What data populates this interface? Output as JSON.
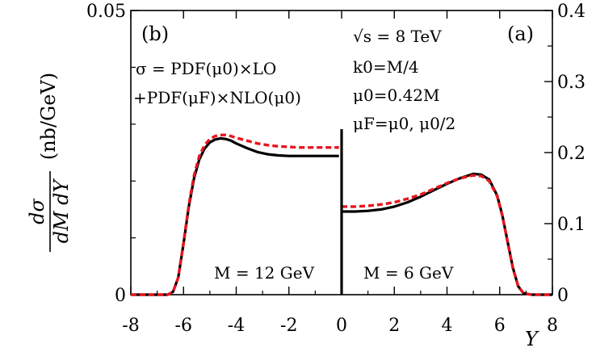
{
  "chart_data": {
    "type": "line",
    "panels": [
      {
        "panel_label": "(b)",
        "M_label": "M = 12 GeV",
        "formula_lines": [
          "σ = PDF(μ0)×LO",
          "+PDF(μF)×NLO(μ0)"
        ],
        "xlim": [
          -8,
          0
        ],
        "ylim": [
          0,
          0.05
        ],
        "series": [
          {
            "style": "solid",
            "color": "#000000",
            "x": [
              -8,
              -6.6,
              -6.4,
              -6.2,
              -6.0,
              -5.8,
              -5.6,
              -5.4,
              -5.2,
              -5.0,
              -4.8,
              -4.6,
              -4.4,
              -4.2,
              -4.0,
              -3.6,
              -3.2,
              -2.8,
              -2.4,
              -2.0,
              -1.6,
              -1.2,
              -0.8,
              -0.4,
              -0.1
            ],
            "y": [
              0,
              0,
              0.0005,
              0.003,
              0.009,
              0.0155,
              0.0205,
              0.0238,
              0.0257,
              0.0268,
              0.0273,
              0.0275,
              0.0274,
              0.0271,
              0.0266,
              0.0258,
              0.0251,
              0.0247,
              0.0245,
              0.0244,
              0.0244,
              0.0244,
              0.0244,
              0.0244,
              0.0244
            ]
          },
          {
            "style": "dashed",
            "color": "#e8141e",
            "x": [
              -8,
              -6.6,
              -6.4,
              -6.2,
              -6.0,
              -5.8,
              -5.6,
              -5.4,
              -5.2,
              -5.0,
              -4.8,
              -4.6,
              -4.4,
              -4.2,
              -4.0,
              -3.6,
              -3.2,
              -2.8,
              -2.4,
              -2.0,
              -1.6,
              -1.2,
              -0.8,
              -0.4,
              -0.1
            ],
            "y": [
              0,
              0,
              0.0005,
              0.003,
              0.0092,
              0.0158,
              0.021,
              0.0244,
              0.0263,
              0.0274,
              0.0279,
              0.0281,
              0.0281,
              0.0279,
              0.0276,
              0.0271,
              0.0266,
              0.0263,
              0.0261,
              0.026,
              0.0259,
              0.0259,
              0.0259,
              0.0259,
              0.0259
            ]
          }
        ]
      },
      {
        "panel_label": "(a)",
        "M_label": "M = 6 GeV",
        "params": [
          "√s = 8 TeV",
          "k0=M/4",
          "μ0=0.42M",
          "μF=μ0, μ0/2"
        ],
        "xlim": [
          0,
          8
        ],
        "ylim": [
          0,
          0.4
        ],
        "series": [
          {
            "style": "solid",
            "color": "#000000",
            "x": [
              0.0,
              0.5,
              1.0,
              1.5,
              2.0,
              2.5,
              3.0,
              3.5,
              4.0,
              4.5,
              5.0,
              5.3,
              5.6,
              5.9,
              6.1,
              6.3,
              6.5,
              6.7,
              6.9,
              7.2,
              8.0
            ],
            "y": [
              0.117,
              0.117,
              0.118,
              0.12,
              0.124,
              0.13,
              0.138,
              0.147,
              0.156,
              0.164,
              0.17,
              0.169,
              0.162,
              0.14,
              0.112,
              0.075,
              0.038,
              0.012,
              0.002,
              0,
              0
            ]
          },
          {
            "style": "dashed",
            "color": "#e8141e",
            "x": [
              0.0,
              0.5,
              1.0,
              1.5,
              2.0,
              2.5,
              3.0,
              3.5,
              4.0,
              4.5,
              5.0,
              5.3,
              5.6,
              5.9,
              6.1,
              6.3,
              6.5,
              6.7,
              6.9,
              7.2,
              8.0
            ],
            "y": [
              0.124,
              0.124,
              0.125,
              0.127,
              0.13,
              0.135,
              0.141,
              0.149,
              0.157,
              0.164,
              0.168,
              0.167,
              0.16,
              0.139,
              0.111,
              0.074,
              0.037,
              0.012,
              0.002,
              0,
              0
            ]
          }
        ]
      }
    ],
    "xlabel": "Y",
    "ylabel": "dσ/(dM dY) (nb/GeV)",
    "x_ticks": [
      "-8",
      "-6",
      "-4",
      "-2",
      "0",
      "2",
      "4",
      "6",
      "8"
    ],
    "left_y_ticks": [
      "0",
      "0.05"
    ],
    "right_y_ticks": [
      "0",
      "0.1",
      "0.2",
      "0.3",
      "0.4"
    ]
  }
}
